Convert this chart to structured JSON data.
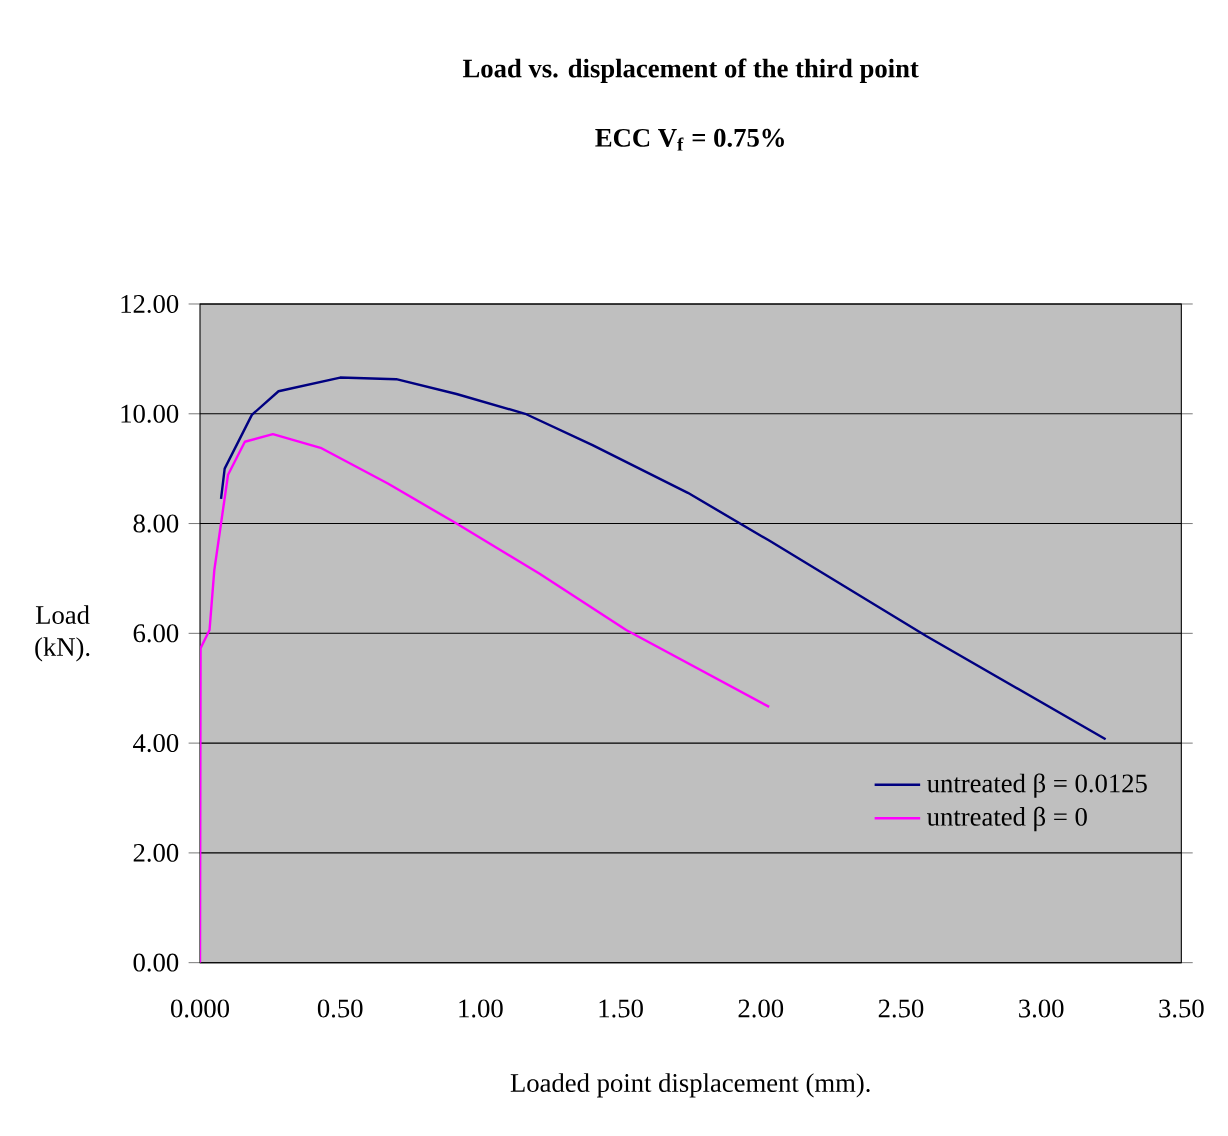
{
  "chart_data": {
    "type": "line",
    "title": "Load vs. displacement of the third point",
    "subtitle": "**ECC V$_{f}$ = 0.75%**",
    "xlabel": "Loaded point displacement (mm).",
    "ylabel": "Load (kN).",
    "xlim": [
      0,
      3.5
    ],
    "ylim": [
      0,
      12
    ],
    "xticks": [
      {
        "value": 0,
        "label": "0.000"
      },
      {
        "value": 0.5,
        "label": "0.50"
      },
      {
        "value": 1,
        "label": "1.00"
      },
      {
        "value": 1.5,
        "label": "1.50"
      },
      {
        "value": 2,
        "label": "2.00"
      },
      {
        "value": 2.5,
        "label": "2.50"
      },
      {
        "value": 3,
        "label": "3.00"
      },
      {
        "value": 3.5,
        "label": "3.50"
      }
    ],
    "yticks": [
      {
        "value": 0,
        "label": "0.00"
      },
      {
        "value": 2,
        "label": "2.00"
      },
      {
        "value": 4,
        "label": "4.00"
      },
      {
        "value": 6,
        "label": "6.00"
      },
      {
        "value": 8,
        "label": "8.00"
      },
      {
        "value": 10,
        "label": "10.00"
      },
      {
        "value": 12,
        "label": "12.00"
      }
    ],
    "grid": "y",
    "legend": "bottom right",
    "marker": "none",
    "line_style": "solid",
    "series": [
      {
        "name": "untreated β = 0.0125",
        "color": "#000080",
        "x": [
          0.075,
          0.088,
          0.185,
          0.28,
          0.5,
          0.7,
          0.915,
          1.16,
          1.4,
          1.74,
          2.03,
          2.59,
          3.23
        ],
        "values": [
          8.45,
          9.0,
          9.98,
          10.41,
          10.66,
          10.63,
          10.36,
          10.0,
          9.43,
          8.56,
          7.69,
          5.95,
          4.07
        ]
      },
      {
        "name": "untreated β = 0",
        "color": "#ff00ff",
        "x": [
          0,
          0.002,
          0.034,
          0.051,
          0.1,
          0.16,
          0.26,
          0.43,
          0.67,
          0.915,
          1.21,
          1.52,
          2.03
        ],
        "values": [
          0,
          5.73,
          6.06,
          7.15,
          8.89,
          9.49,
          9.63,
          9.38,
          8.73,
          8.0,
          7.09,
          6.06,
          4.66
        ]
      }
    ]
  }
}
